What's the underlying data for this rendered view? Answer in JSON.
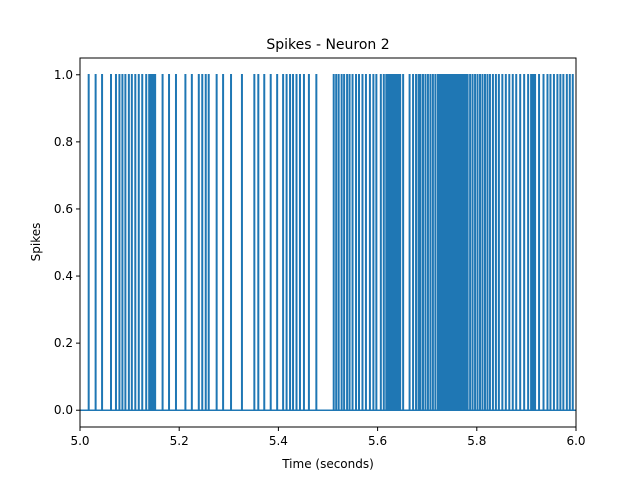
{
  "chart_data": {
    "type": "line",
    "title": "Spikes - Neuron 2",
    "xlabel": "Time (seconds)",
    "ylabel": "Spikes",
    "xlim": [
      5.0,
      6.0
    ],
    "ylim": [
      -0.05,
      1.05
    ],
    "grid": false,
    "line_color": "#1f77b4",
    "x_ticks": [
      5.0,
      5.2,
      5.4,
      5.6,
      5.8,
      6.0
    ],
    "x_tick_labels": [
      "5.0",
      "5.2",
      "5.4",
      "5.6",
      "5.8",
      "6.0"
    ],
    "y_ticks": [
      0.0,
      0.2,
      0.4,
      0.6,
      0.8,
      1.0
    ],
    "y_tick_labels": [
      "0.0",
      "0.2",
      "0.4",
      "0.6",
      "0.8",
      "1.0"
    ],
    "series": [
      {
        "spike_times": [
          5.017,
          5.031,
          5.044,
          5.062,
          5.072,
          5.079,
          5.085,
          5.091,
          5.098,
          5.104,
          5.111,
          5.118,
          5.125,
          5.133,
          5.139,
          5.143,
          5.147,
          5.151,
          5.166,
          5.179,
          5.193,
          5.212,
          5.225,
          5.239,
          5.246,
          5.253,
          5.259,
          5.275,
          5.288,
          5.304,
          5.326,
          5.351,
          5.359,
          5.371,
          5.384,
          5.397,
          5.409,
          5.416,
          5.423,
          5.429,
          5.436,
          5.443,
          5.451,
          5.461,
          5.476,
          5.511,
          5.516,
          5.521,
          5.527,
          5.532,
          5.538,
          5.543,
          5.549,
          5.556,
          5.562,
          5.569,
          5.576,
          5.584,
          5.591,
          5.597,
          5.606,
          5.612,
          5.617,
          5.621,
          5.624,
          5.628,
          5.632,
          5.636,
          5.639,
          5.642,
          5.645,
          5.651,
          5.664,
          5.671,
          5.677,
          5.682,
          5.686,
          5.691,
          5.696,
          5.701,
          5.706,
          5.711,
          5.716,
          5.721,
          5.725,
          5.729,
          5.733,
          5.737,
          5.741,
          5.745,
          5.749,
          5.753,
          5.757,
          5.761,
          5.765,
          5.769,
          5.773,
          5.777,
          5.781,
          5.786,
          5.791,
          5.796,
          5.801,
          5.806,
          5.811,
          5.816,
          5.821,
          5.826,
          5.832,
          5.838,
          5.844,
          5.851,
          5.858,
          5.865,
          5.872,
          5.879,
          5.887,
          5.895,
          5.903,
          5.909,
          5.913,
          5.917,
          5.925,
          5.934,
          5.942,
          5.948,
          5.955,
          5.962,
          5.968,
          5.974,
          5.981,
          5.987,
          5.993
        ]
      }
    ]
  }
}
